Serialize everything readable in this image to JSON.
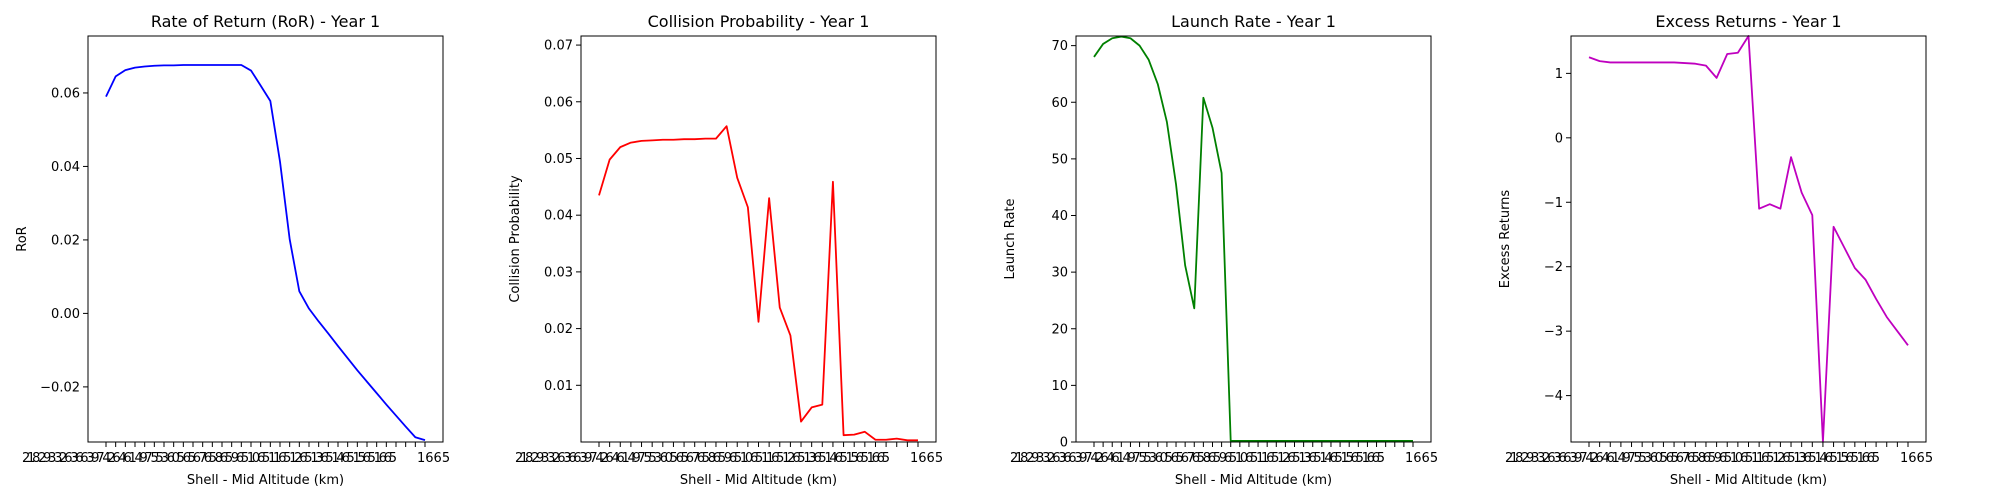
{
  "chart_data": [
    {
      "type": "line",
      "title": "Rate of Return (RoR) - Year 1",
      "xlabel": "Shell - Mid Altitude (km)",
      "ylabel": "RoR",
      "color": "#0000ff",
      "ylim": [
        -0.035,
        0.0755
      ],
      "yticks": [
        -0.02,
        0.0,
        0.02,
        0.04,
        0.06
      ],
      "ytick_labels": [
        "−0.02",
        "0.00",
        "0.02",
        "0.04",
        "0.06"
      ],
      "x_tick_text": "218 293 326 366 397 426 461 497 553 605 656 765 865 965 1065 1165 1265 1365 1465 1565 1665",
      "last_tick_label": "1665",
      "values": [
        0.059,
        0.0645,
        0.0662,
        0.0669,
        0.0672,
        0.0674,
        0.0675,
        0.0675,
        0.0676,
        0.0676,
        0.0676,
        0.0676,
        0.0676,
        0.0676,
        0.0676,
        0.0661,
        0.062,
        0.0578,
        0.0413,
        0.0202,
        0.006,
        0.0013,
        -0.0022,
        -0.0055,
        -0.0089,
        -0.0122,
        -0.0155,
        -0.0186,
        -0.0217,
        -0.0248,
        -0.0278,
        -0.0308,
        -0.0337,
        -0.0345
      ]
    },
    {
      "type": "line",
      "title": "Collision Probability - Year 1",
      "xlabel": "Shell - Mid Altitude (km)",
      "ylabel": "Collision Probability",
      "color": "#ff0000",
      "ylim": [
        0.0,
        0.0716
      ],
      "yticks": [
        0.01,
        0.02,
        0.03,
        0.04,
        0.05,
        0.06,
        0.07
      ],
      "ytick_labels": [
        "0.01",
        "0.02",
        "0.03",
        "0.04",
        "0.05",
        "0.06",
        "0.07"
      ],
      "x_tick_text": "218 293 326 366 397 426 461 497 553 605 656 765 865 965 1065 1165 1265 1365 1465 1565 1665",
      "last_tick_label": "1665",
      "values": [
        0.0435,
        0.0498,
        0.052,
        0.0528,
        0.0531,
        0.0532,
        0.0533,
        0.0533,
        0.0534,
        0.0534,
        0.0535,
        0.0535,
        0.0557,
        0.0466,
        0.0414,
        0.0212,
        0.043,
        0.0237,
        0.0188,
        0.0036,
        0.0061,
        0.0066,
        0.0459,
        0.0012,
        0.0013,
        0.0018,
        0.0004,
        0.0004,
        0.0006,
        0.0003,
        0.0003
      ]
    },
    {
      "type": "line",
      "title": "Launch Rate - Year 1",
      "xlabel": "Shell - Mid Altitude (km)",
      "ylabel": "Launch Rate",
      "color": "#008000",
      "ylim": [
        0,
        71.7
      ],
      "yticks": [
        0,
        10,
        20,
        30,
        40,
        50,
        60,
        70
      ],
      "ytick_labels": [
        "0",
        "10",
        "20",
        "30",
        "40",
        "50",
        "60",
        "70"
      ],
      "x_tick_text": "218 293 326 366 397 426 461 497 553 605 656 765 865 965 1065 1165 1265 1365 1465 1565 1665",
      "last_tick_label": "1665",
      "values": [
        68.0,
        70.3,
        71.3,
        71.6,
        71.3,
        70.0,
        67.5,
        63.2,
        56.5,
        45.5,
        31.2,
        23.6,
        60.8,
        55.5,
        47.5,
        0.2,
        0.2,
        0.2,
        0.2,
        0.2,
        0.2,
        0.2,
        0.2,
        0.2,
        0.2,
        0.2,
        0.2,
        0.2,
        0.2,
        0.2,
        0.2,
        0.2,
        0.2,
        0.2,
        0.2,
        0.2
      ]
    },
    {
      "type": "line",
      "title": "Excess Returns - Year 1",
      "xlabel": "Shell - Mid Altitude (km)",
      "ylabel": "Excess Returns",
      "color": "#bf00bf",
      "ylim": [
        -4.72,
        1.58
      ],
      "yticks": [
        -4,
        -3,
        -2,
        -1,
        0,
        1
      ],
      "ytick_labels": [
        "−4",
        "−3",
        "−2",
        "−1",
        "0",
        "1"
      ],
      "x_tick_text": "218 293 326 366 397 426 461 497 553 605 656 765 865 965 1065 1165 1265 1365 1465 1565 1665",
      "last_tick_label": "1665",
      "values": [
        1.25,
        1.19,
        1.17,
        1.17,
        1.17,
        1.17,
        1.17,
        1.17,
        1.17,
        1.16,
        1.15,
        1.12,
        0.93,
        1.3,
        1.32,
        1.58,
        -1.1,
        -1.03,
        -1.1,
        -0.3,
        -0.85,
        -1.2,
        -4.72,
        -1.38,
        -1.7,
        -2.02,
        -2.2,
        -2.5,
        -2.78,
        -3.0,
        -3.22
      ]
    }
  ]
}
